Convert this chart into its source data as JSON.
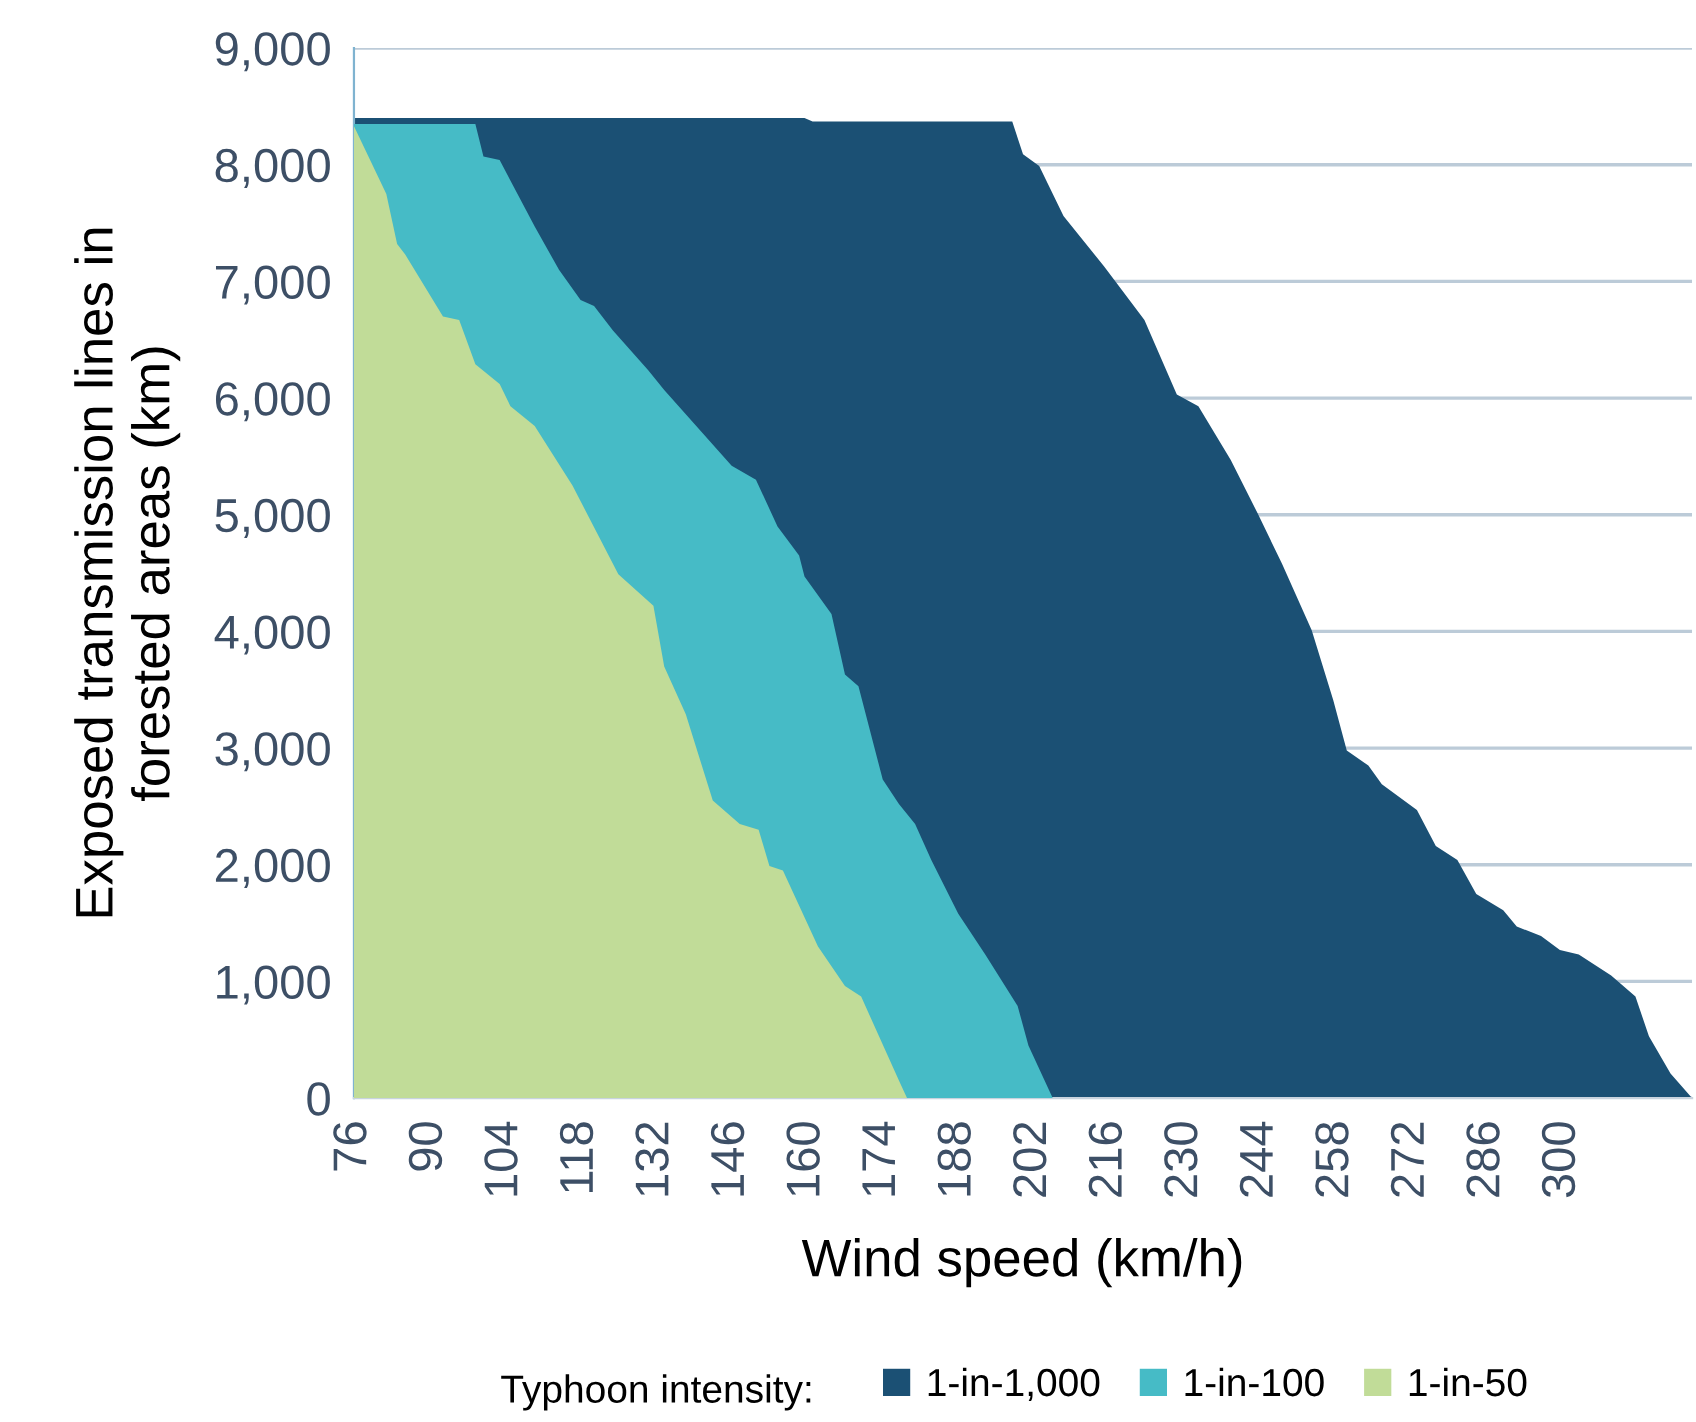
{
  "chart_data": {
    "type": "area",
    "xlabel": "Wind speed (km/h)",
    "ylabel": "Exposed transmission lines in\nforested areas (km)",
    "legend_title": "Typhoon intensity:",
    "legend": "bottom",
    "grid": "y",
    "xlim": [
      76,
      324
    ],
    "xticks": [
      76,
      90,
      104,
      118,
      132,
      146,
      160,
      174,
      188,
      202,
      216,
      230,
      244,
      258,
      272,
      286,
      300
    ],
    "ylim": [
      0,
      9000
    ],
    "yticks": [
      {
        "value": 0,
        "label": "0"
      },
      {
        "value": 1000,
        "label": "1,000"
      },
      {
        "value": 2000,
        "label": "2,000"
      },
      {
        "value": 3000,
        "label": "3,000"
      },
      {
        "value": 4000,
        "label": "4,000"
      },
      {
        "value": 5000,
        "label": "5,000"
      },
      {
        "value": 6000,
        "label": "6,000"
      },
      {
        "value": 7000,
        "label": "7,000"
      },
      {
        "value": 8000,
        "label": "8,000"
      },
      {
        "value": 9000,
        "label": "9,000"
      }
    ],
    "series": [
      {
        "name": "1-in-1,000",
        "color": "#1b5074",
        "x": [
          76,
          159.5,
          161,
          198,
          200,
          203,
          207.5,
          215,
          222.5,
          228.5,
          232.5,
          238.5,
          243.5,
          248,
          253.5,
          257.5,
          260,
          264,
          266.5,
          273,
          276.5,
          280.5,
          284,
          289,
          291.5,
          296,
          299.5,
          303,
          309,
          313.5,
          316,
          320,
          324
        ],
        "values": [
          8400,
          8400,
          8370,
          8370,
          8090,
          7990,
          7560,
          7130,
          6670,
          6030,
          5930,
          5470,
          5010,
          4580,
          4010,
          3410,
          2980,
          2850,
          2690,
          2470,
          2160,
          2040,
          1750,
          1610,
          1470,
          1390,
          1270,
          1230,
          1050,
          870,
          530,
          210,
          0
        ]
      },
      {
        "name": "1-in-100",
        "color": "#46bbc6",
        "x": [
          76,
          98.5,
          100,
          103,
          109.5,
          114,
          118,
          120.5,
          124,
          130.5,
          133.5,
          146,
          150.5,
          154.5,
          158.5,
          159.5,
          164.5,
          167,
          169.5,
          174,
          177,
          180,
          183,
          188,
          193,
          199,
          201,
          205.5
        ],
        "values": [
          8350,
          8350,
          8070,
          8040,
          7470,
          7100,
          6840,
          6790,
          6580,
          6240,
          6070,
          5420,
          5300,
          4900,
          4650,
          4470,
          4150,
          3630,
          3530,
          2730,
          2520,
          2350,
          2040,
          1580,
          1230,
          790,
          450,
          0
        ]
      },
      {
        "name": "1-in-50",
        "color": "#c1dc98",
        "x": [
          76,
          82,
          84,
          85.5,
          92.5,
          95.5,
          98.5,
          103,
          105,
          109.5,
          116.5,
          125,
          131.5,
          133.5,
          137.5,
          142.5,
          147.5,
          151,
          153,
          155.5,
          162,
          167,
          170,
          177,
          178.5
        ],
        "values": [
          8330,
          7750,
          7320,
          7230,
          6700,
          6670,
          6290,
          6120,
          5930,
          5760,
          5250,
          4490,
          4220,
          3700,
          3290,
          2550,
          2350,
          2300,
          1990,
          1950,
          1300,
          960,
          870,
          150,
          0
        ]
      }
    ]
  }
}
